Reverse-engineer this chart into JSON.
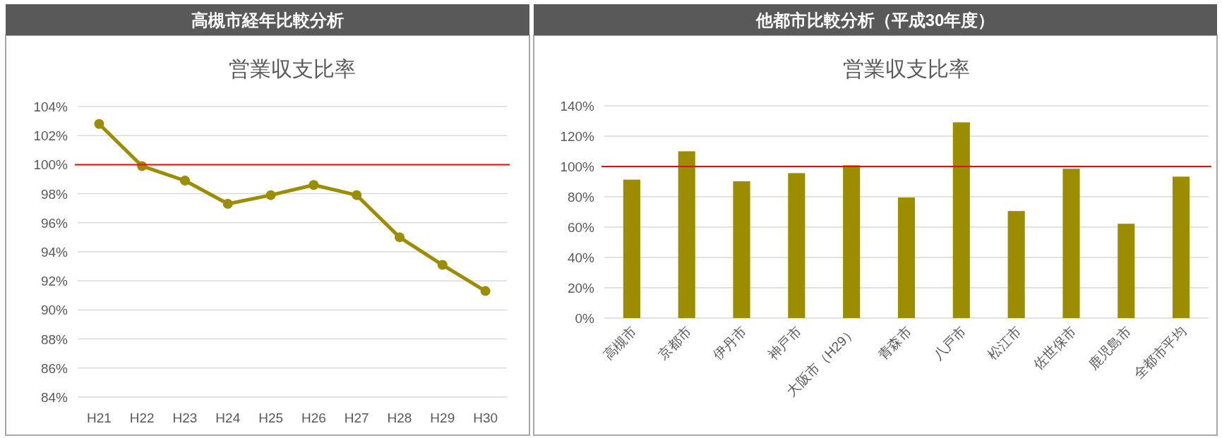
{
  "chart_data": [
    {
      "type": "line",
      "title": "高槻市経年比較分析",
      "subtitle": "営業収支比率",
      "categories": [
        "H21",
        "H22",
        "H23",
        "H24",
        "H25",
        "H26",
        "H27",
        "H28",
        "H29",
        "H30"
      ],
      "series": [
        {
          "color": "#9c8c00",
          "values": [
            102.8,
            99.9,
            98.9,
            97.3,
            97.9,
            98.6,
            97.9,
            95.0,
            93.1,
            91.3
          ]
        }
      ],
      "ylim": [
        84,
        104
      ],
      "yticks": [
        {
          "value": 84,
          "label": "84%"
        },
        {
          "value": 86,
          "label": "86%"
        },
        {
          "value": 88,
          "label": "88%"
        },
        {
          "value": 90,
          "label": "90%"
        },
        {
          "value": 92,
          "label": "92%"
        },
        {
          "value": 94,
          "label": "94%"
        },
        {
          "value": 96,
          "label": "96%"
        },
        {
          "value": 98,
          "label": "98%"
        },
        {
          "value": 100,
          "label": "100%"
        },
        {
          "value": 102,
          "label": "102%"
        },
        {
          "value": 104,
          "label": "104%"
        }
      ],
      "grid": "y",
      "marker": "circle",
      "line_style": "solid",
      "ref_lines": [
        {
          "axis": "y",
          "value": 100,
          "color": "#ff0000"
        }
      ]
    },
    {
      "type": "bar",
      "title": "他都市比較分析（平成30年度）",
      "subtitle": "営業収支比率",
      "categories": [
        "高槻市",
        "京都市",
        "伊丹市",
        "神戸市",
        "大阪市（H29）",
        "青森市",
        "八戸市",
        "松江市",
        "佐世保市",
        "鹿児島市",
        "全都市平均"
      ],
      "series": [
        {
          "color": "#9c8c00",
          "values": [
            91.3,
            110.0,
            90.2,
            95.6,
            100.8,
            79.5,
            129.1,
            70.6,
            98.5,
            62.2,
            93.3
          ]
        }
      ],
      "ylim": [
        0,
        140
      ],
      "yticks": [
        {
          "value": 0,
          "label": "0%"
        },
        {
          "value": 20,
          "label": "20%"
        },
        {
          "value": 40,
          "label": "40%"
        },
        {
          "value": 60,
          "label": "60%"
        },
        {
          "value": 80,
          "label": "80%"
        },
        {
          "value": 100,
          "label": "100%"
        },
        {
          "value": 120,
          "label": "120%"
        },
        {
          "value": 140,
          "label": "140%"
        }
      ],
      "grid": "y",
      "ref_lines": [
        {
          "axis": "y",
          "value": 100,
          "color": "#ff0000"
        }
      ]
    }
  ]
}
